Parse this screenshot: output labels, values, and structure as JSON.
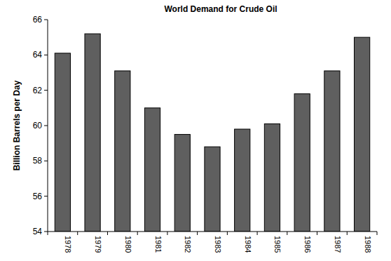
{
  "chart_data": {
    "type": "bar",
    "title": "World Demand for Crude Oil",
    "y_label": "Billion Barrels per Day",
    "categories": [
      "1978",
      "1979",
      "1980",
      "1981",
      "1982",
      "1983",
      "1984",
      "1985",
      "1986",
      "1987",
      "1988"
    ],
    "values": [
      64.1,
      65.2,
      63.1,
      61.0,
      59.5,
      58.8,
      59.8,
      60.1,
      61.8,
      63.1,
      65.0
    ],
    "color": "#5f5f5f",
    "ylim": [
      54,
      66
    ],
    "yticks": [
      54,
      56,
      58,
      60,
      62,
      64,
      66
    ],
    "grid": false
  }
}
